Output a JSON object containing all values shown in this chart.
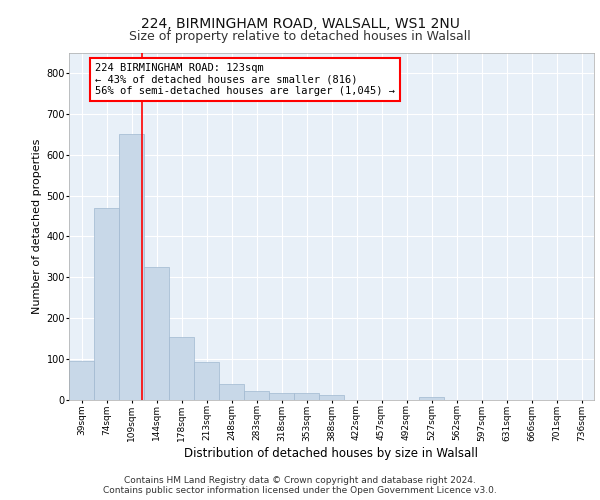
{
  "title1": "224, BIRMINGHAM ROAD, WALSALL, WS1 2NU",
  "title2": "Size of property relative to detached houses in Walsall",
  "xlabel": "Distribution of detached houses by size in Walsall",
  "ylabel": "Number of detached properties",
  "footer1": "Contains HM Land Registry data © Crown copyright and database right 2024.",
  "footer2": "Contains public sector information licensed under the Open Government Licence v3.0.",
  "bins": [
    "39sqm",
    "74sqm",
    "109sqm",
    "144sqm",
    "178sqm",
    "213sqm",
    "248sqm",
    "283sqm",
    "318sqm",
    "353sqm",
    "388sqm",
    "422sqm",
    "457sqm",
    "492sqm",
    "527sqm",
    "562sqm",
    "597sqm",
    "631sqm",
    "666sqm",
    "701sqm",
    "736sqm"
  ],
  "bar_values": [
    95,
    470,
    650,
    325,
    155,
    92,
    40,
    23,
    17,
    16,
    12,
    0,
    0,
    0,
    7,
    0,
    0,
    0,
    0,
    0,
    0
  ],
  "bar_color": "#c8d8e8",
  "bar_edge_color": "#a0b8d0",
  "red_line_x": 2.43,
  "annotation_text": "224 BIRMINGHAM ROAD: 123sqm\n← 43% of detached houses are smaller (816)\n56% of semi-detached houses are larger (1,045) →",
  "annotation_box_color": "white",
  "annotation_box_edge": "red",
  "ylim": [
    0,
    850
  ],
  "background_color": "#e8f0f8",
  "grid_color": "white",
  "title1_fontsize": 10,
  "title2_fontsize": 9,
  "tick_fontsize": 6.5,
  "ylabel_fontsize": 8,
  "xlabel_fontsize": 8.5,
  "footer_fontsize": 6.5,
  "annotation_fontsize": 7.5
}
